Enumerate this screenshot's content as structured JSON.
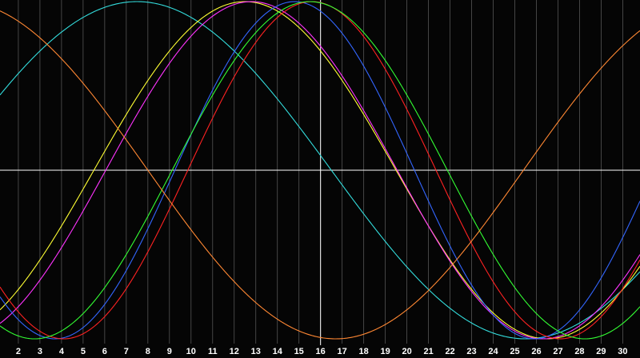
{
  "chart_data": {
    "type": "line",
    "title": "",
    "xlabel": "",
    "ylabel": "",
    "xlim": [
      1.15,
      30.8
    ],
    "ylim": [
      -1.0,
      1.0
    ],
    "x_tick_labels": [
      "2",
      "3",
      "4",
      "5",
      "6",
      "7",
      "8",
      "9",
      "10",
      "11",
      "12",
      "13",
      "14",
      "15",
      "16",
      "17",
      "18",
      "19",
      "20",
      "21",
      "22",
      "23",
      "24",
      "25",
      "26",
      "27",
      "28",
      "29",
      "30"
    ],
    "vertical_grid": true,
    "horizontal_grid": false,
    "axis_lines": {
      "x_zero": true,
      "vertical_at_x": 16
    },
    "colors": {
      "background": "#050505",
      "grid": "#555555",
      "axis": "#ffffff",
      "tick_text": "#ffffff"
    },
    "series": [
      {
        "color": "#33dddd",
        "peak_x": 7.5,
        "period": 36.0
      },
      {
        "color": "#ffff33",
        "peak_x": 12.5,
        "period": 28.0
      },
      {
        "color": "#ff33ff",
        "peak_x": 12.8,
        "period": 27.0
      },
      {
        "color": "#3366ff",
        "peak_x": 14.8,
        "period": 22.2
      },
      {
        "color": "#ff2222",
        "peak_x": 15.6,
        "period": 23.0
      },
      {
        "color": "#33ff33",
        "peak_x": 15.5,
        "period": 25.5
      },
      {
        "color": "#ff8833",
        "peak_x": -0.7,
        "period": 34.8
      }
    ]
  }
}
